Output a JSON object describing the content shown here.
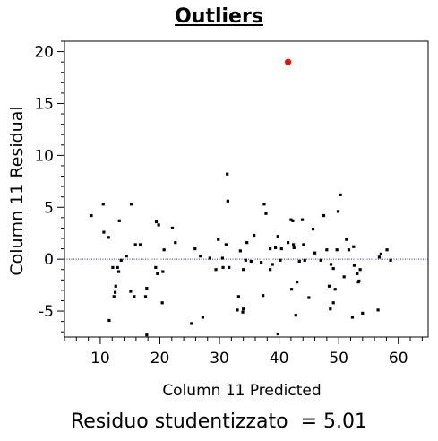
{
  "chart_data": {
    "type": "scatter",
    "title": "Outliers",
    "xlabel": "Column 11 Predicted",
    "ylabel": "Column 11  Residual",
    "xlim": [
      4,
      65
    ],
    "ylim": [
      -7.5,
      21
    ],
    "xticks": [
      10,
      20,
      30,
      40,
      50,
      60
    ],
    "yticks": [
      -5,
      0,
      5,
      10,
      15,
      20
    ],
    "grid": false,
    "reference_line": {
      "y": 0,
      "color": "#2a2aa8",
      "style": "dotted"
    },
    "colors": {
      "points": "#000000",
      "outlier": "#e8140c"
    },
    "outlier": {
      "x": 41.5,
      "y": 19.0
    },
    "points": [
      [
        8.5,
        4.2
      ],
      [
        10.5,
        5.3
      ],
      [
        10.6,
        2.6
      ],
      [
        11.4,
        2.1
      ],
      [
        11.5,
        -5.9
      ],
      [
        12.1,
        -0.8
      ],
      [
        12.3,
        -3.6
      ],
      [
        12.5,
        -3.2
      ],
      [
        12.6,
        -2.6
      ],
      [
        12.9,
        -0.8
      ],
      [
        13.1,
        -1.2
      ],
      [
        13.2,
        3.7
      ],
      [
        13.5,
        -0.1
      ],
      [
        14.4,
        0.3
      ],
      [
        15.1,
        -3.1
      ],
      [
        15.2,
        5.3
      ],
      [
        15.7,
        -3.6
      ],
      [
        15.9,
        1.4
      ],
      [
        16.7,
        1.4
      ],
      [
        17.6,
        -3.6
      ],
      [
        17.8,
        -7.3
      ],
      [
        17.8,
        -2.8
      ],
      [
        19.3,
        -0.8
      ],
      [
        19.4,
        3.6
      ],
      [
        19.6,
        -1.4
      ],
      [
        19.8,
        3.3
      ],
      [
        20.4,
        -4.2
      ],
      [
        20.5,
        -1.2
      ],
      [
        20.7,
        0.9
      ],
      [
        22.1,
        3.0
      ],
      [
        22.6,
        1.6
      ],
      [
        25.3,
        -6.2
      ],
      [
        25.9,
        1.0
      ],
      [
        26.8,
        0.3
      ],
      [
        27.2,
        -5.6
      ],
      [
        28.4,
        0.1
      ],
      [
        29.4,
        -1.0
      ],
      [
        29.8,
        1.9
      ],
      [
        30.5,
        0.1
      ],
      [
        30.6,
        -0.8
      ],
      [
        31.1,
        1.4
      ],
      [
        31.3,
        8.2
      ],
      [
        31.4,
        5.6
      ],
      [
        31.6,
        -0.8
      ],
      [
        33.0,
        -4.9
      ],
      [
        33.2,
        -3.6
      ],
      [
        33.5,
        0.8
      ],
      [
        33.9,
        -5.1
      ],
      [
        34.0,
        -1.0
      ],
      [
        34.0,
        -4.8
      ],
      [
        34.4,
        -0.1
      ],
      [
        34.6,
        1.6
      ],
      [
        35.3,
        -0.2
      ],
      [
        35.8,
        2.3
      ],
      [
        37.0,
        -0.3
      ],
      [
        37.3,
        -3.5
      ],
      [
        37.5,
        5.3
      ],
      [
        37.8,
        4.4
      ],
      [
        38.5,
        -1.0
      ],
      [
        38.5,
        1.0
      ],
      [
        38.9,
        -0.5
      ],
      [
        39.4,
        1.1
      ],
      [
        39.8,
        2.2
      ],
      [
        39.8,
        -7.2
      ],
      [
        40.2,
        -0.1
      ],
      [
        40.4,
        1.0
      ],
      [
        41.5,
        1.6
      ],
      [
        42.0,
        3.8
      ],
      [
        42.1,
        -2.9
      ],
      [
        42.3,
        3.7
      ],
      [
        42.4,
        1.4
      ],
      [
        42.5,
        1.1
      ],
      [
        42.8,
        -5.4
      ],
      [
        43.0,
        -2.2
      ],
      [
        43.4,
        -0.2
      ],
      [
        43.9,
        3.8
      ],
      [
        44.1,
        1.4
      ],
      [
        44.3,
        -0.1
      ],
      [
        45.0,
        -3.7
      ],
      [
        45.7,
        2.9
      ],
      [
        46.0,
        0.6
      ],
      [
        47.0,
        -0.1
      ],
      [
        47.5,
        4.2
      ],
      [
        48.0,
        0.9
      ],
      [
        48.4,
        -2.6
      ],
      [
        48.6,
        -4.8
      ],
      [
        48.7,
        -0.5
      ],
      [
        49.1,
        -0.9
      ],
      [
        49.1,
        -4.2
      ],
      [
        49.4,
        -2.9
      ],
      [
        49.7,
        0.9
      ],
      [
        49.9,
        4.6
      ],
      [
        50.3,
        6.2
      ],
      [
        50.9,
        -1.7
      ],
      [
        51.3,
        1.9
      ],
      [
        51.7,
        0.9
      ],
      [
        52.3,
        -5.6
      ],
      [
        52.5,
        1.2
      ],
      [
        52.6,
        -0.6
      ],
      [
        53.1,
        -1.4
      ],
      [
        53.3,
        -2.2
      ],
      [
        53.4,
        -2.1
      ],
      [
        53.6,
        -1.0
      ],
      [
        54.0,
        -5.2
      ],
      [
        56.6,
        -4.9
      ],
      [
        56.8,
        0.2
      ],
      [
        57.1,
        0.5
      ],
      [
        58.1,
        0.9
      ],
      [
        58.7,
        -0.1
      ]
    ]
  },
  "footer": {
    "label": "Residuo studentizzato  =",
    "value": "5.01"
  }
}
